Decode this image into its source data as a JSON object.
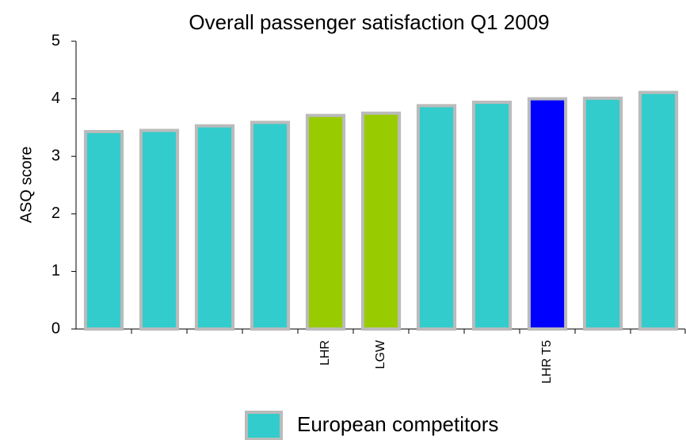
{
  "chart_data": {
    "type": "bar",
    "title": "Overall passenger satisfaction Q1 2009",
    "ylabel": "ASQ score",
    "categories": [
      null,
      null,
      null,
      null,
      "LHR",
      "LGW",
      null,
      null,
      "LHR T5",
      null,
      null
    ],
    "values": [
      3.43,
      3.45,
      3.53,
      3.59,
      3.71,
      3.75,
      3.88,
      3.94,
      4.0,
      4.01,
      4.11
    ],
    "colors": [
      "#33cccc",
      "#33cccc",
      "#33cccc",
      "#33cccc",
      "#99cc00",
      "#99cc00",
      "#33cccc",
      "#33cccc",
      "#0000ff",
      "#33cccc",
      "#33cccc"
    ],
    "legend": [
      {
        "name": "European competitors",
        "color": "#33cccc"
      }
    ],
    "ylim": [
      0,
      5
    ],
    "yticks": [
      0,
      1,
      2,
      3,
      4,
      5
    ],
    "grid": false
  }
}
